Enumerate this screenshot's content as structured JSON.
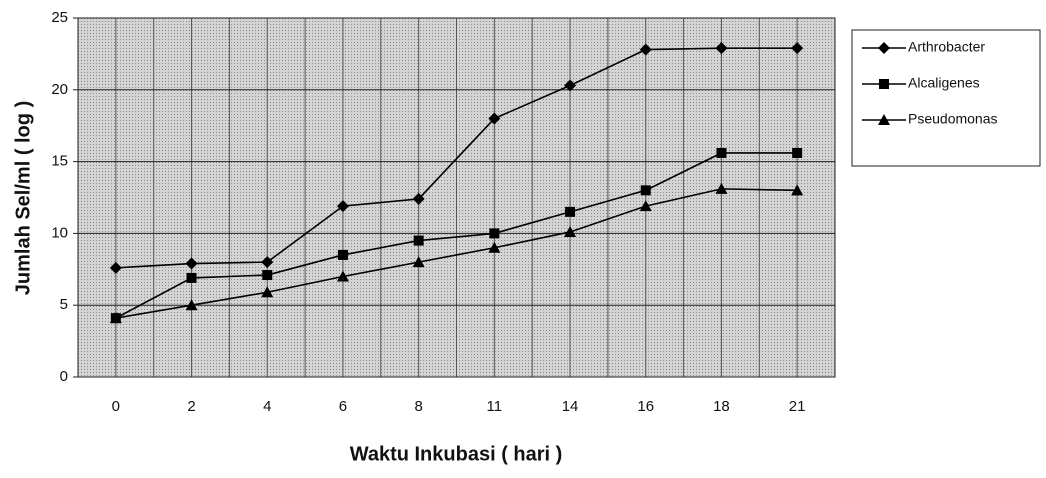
{
  "chart_data": {
    "type": "line",
    "x_label": "Waktu Inkubasi ( hari )",
    "y_label": "Jumlah Sel/ml ( log )",
    "categories": [
      "0",
      "2",
      "4",
      "6",
      "8",
      "11",
      "14",
      "16",
      "18",
      "21"
    ],
    "series": [
      {
        "name": "Arthrobacter",
        "color": "#000000",
        "marker": "diamond",
        "values": [
          7.6,
          7.9,
          8.0,
          11.9,
          12.4,
          18.0,
          20.3,
          22.8,
          22.9,
          22.9
        ]
      },
      {
        "name": "Alcaligenes",
        "color": "#000000",
        "marker": "square",
        "values": [
          4.1,
          6.9,
          7.1,
          8.5,
          9.5,
          10.0,
          11.5,
          13.0,
          15.6,
          15.6
        ]
      },
      {
        "name": "Pseudomonas",
        "color": "#000000",
        "marker": "triangle",
        "values": [
          4.1,
          5.0,
          5.9,
          7.0,
          8.0,
          9.0,
          10.1,
          11.9,
          13.1,
          13.0
        ]
      }
    ],
    "ylim": [
      0,
      25
    ],
    "yticks": [
      0,
      5,
      10,
      15,
      20,
      25
    ],
    "grid": true,
    "legend": "right"
  }
}
